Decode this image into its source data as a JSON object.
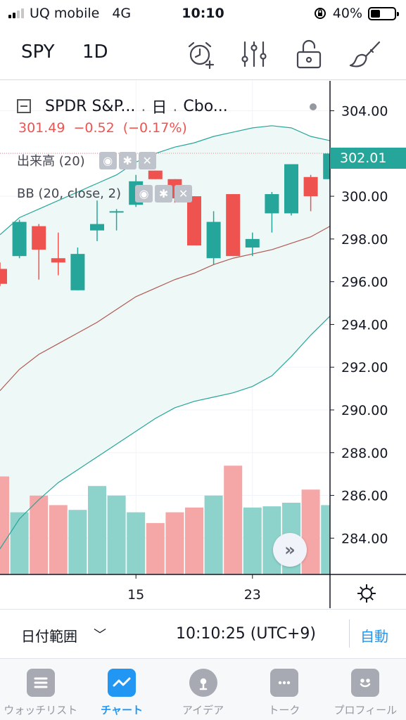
{
  "status_bar": {
    "carrier": "UQ mobile",
    "network": "4G",
    "time": "10:10",
    "battery_text": "40%",
    "battery_level": 0.4
  },
  "toolbar": {
    "symbol": "SPY",
    "interval": "1D",
    "icons": [
      "alarm-add-icon",
      "indicators-icon",
      "lock-icon",
      "drawing-brush-icon"
    ]
  },
  "legend": {
    "name": "SPDR S&P...",
    "sep1": ".",
    "interval": "日",
    "sep2": ".",
    "exchange": "Cbo...",
    "last": "301.49",
    "change": "−0.52",
    "change_pct": "(−0.17%)",
    "volume_label": "出来高 (20)",
    "bb_label": "BB (20, close, 2)"
  },
  "price_badge": "302.01",
  "colors": {
    "up": "#26a69a",
    "down": "#ef5350",
    "up_vol": "#8ed3cb",
    "down_vol": "#f5a6a6",
    "bb_basis": "#b05a52",
    "bb_band": "#26a69a",
    "bb_fill": "#eef8f7",
    "accent": "#2196f3"
  },
  "chart_data": {
    "type": "candlestick",
    "y_ticks": [
      "304.00",
      "302.00",
      "300.00",
      "298.00",
      "296.00",
      "294.00",
      "292.00",
      "290.00",
      "288.00",
      "286.00",
      "284.00"
    ],
    "ylim": [
      282.3,
      305.4
    ],
    "x_tick_labels": [
      {
        "label": "15",
        "index": 7
      },
      {
        "label": "23",
        "index": 13
      }
    ],
    "candles": [
      {
        "o": 296.6,
        "h": 296.9,
        "l": 295.8,
        "c": 295.9
      },
      {
        "o": 297.2,
        "h": 298.9,
        "l": 297.1,
        "c": 298.8
      },
      {
        "o": 298.6,
        "h": 298.7,
        "l": 296.1,
        "c": 297.5
      },
      {
        "o": 297.1,
        "h": 298.3,
        "l": 296.3,
        "c": 296.9
      },
      {
        "o": 295.6,
        "h": 297.6,
        "l": 295.6,
        "c": 297.3
      },
      {
        "o": 298.4,
        "h": 299.8,
        "l": 297.9,
        "c": 298.7
      },
      {
        "o": 299.3,
        "h": 299.4,
        "l": 298.4,
        "c": 299.3
      },
      {
        "o": 299.6,
        "h": 301.0,
        "l": 299.5,
        "c": 300.7
      },
      {
        "o": 301.2,
        "h": 301.2,
        "l": 300.8,
        "c": 300.8
      },
      {
        "o": 300.8,
        "h": 300.8,
        "l": 299.7,
        "c": 299.9
      },
      {
        "o": 300.0,
        "h": 300.0,
        "l": 297.7,
        "c": 297.7
      },
      {
        "o": 297.1,
        "h": 299.3,
        "l": 296.8,
        "c": 298.8
      },
      {
        "o": 300.1,
        "h": 300.1,
        "l": 297.2,
        "c": 297.2
      },
      {
        "o": 297.6,
        "h": 298.3,
        "l": 297.2,
        "c": 298.0
      },
      {
        "o": 299.2,
        "h": 300.2,
        "l": 298.3,
        "c": 300.1
      },
      {
        "o": 299.2,
        "h": 301.5,
        "l": 299.1,
        "c": 301.5
      },
      {
        "o": 300.9,
        "h": 301.0,
        "l": 299.3,
        "c": 300.0
      },
      {
        "o": 300.8,
        "h": 302.3,
        "l": 300.6,
        "c": 302.0
      }
    ],
    "volume_ratio": [
      0.82,
      0.52,
      0.66,
      0.58,
      0.54,
      0.74,
      0.66,
      0.52,
      0.43,
      0.52,
      0.56,
      0.66,
      0.91,
      0.56,
      0.57,
      0.6,
      0.71,
      0.58
    ],
    "bb_upper": [
      298.2,
      299.0,
      299.4,
      299.8,
      300.2,
      300.6,
      301.0,
      301.6,
      302.0,
      302.3,
      302.5,
      302.8,
      303.0,
      303.2,
      303.3,
      303.2,
      302.8,
      302.6
    ],
    "bb_basis": [
      290.9,
      291.9,
      292.6,
      293.1,
      293.6,
      294.1,
      294.7,
      295.3,
      295.7,
      296.1,
      296.4,
      296.8,
      297.1,
      297.3,
      297.5,
      297.8,
      298.1,
      298.6
    ],
    "bb_lower": [
      283.5,
      284.9,
      285.8,
      286.6,
      287.2,
      287.8,
      288.4,
      289.0,
      289.6,
      290.1,
      290.4,
      290.6,
      290.8,
      291.1,
      291.6,
      292.5,
      293.5,
      294.4
    ]
  },
  "range_bar": {
    "label": "日付範囲",
    "time": "10:10:25 (UTC+9)",
    "auto": "自動"
  },
  "bottom_nav": [
    {
      "label": "ウォッチリスト",
      "icon": "watchlist-icon"
    },
    {
      "label": "チャート",
      "icon": "chart-icon",
      "active": true
    },
    {
      "label": "アイデア",
      "icon": "ideas-icon"
    },
    {
      "label": "トーク",
      "icon": "chat-icon"
    },
    {
      "label": "プロフィール",
      "icon": "profile-icon"
    }
  ]
}
